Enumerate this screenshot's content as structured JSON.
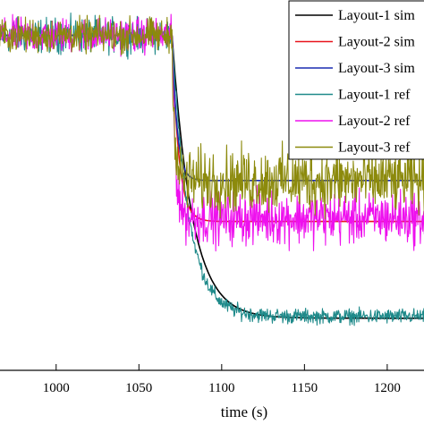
{
  "chart_data": {
    "type": "line",
    "title": "",
    "xlabel": "time (s)",
    "ylabel": "",
    "xlim": [
      965,
      1226
    ],
    "x_ticks": [
      {
        "value": 1000,
        "label": "1000"
      },
      {
        "value": 1050,
        "label": "1050"
      },
      {
        "value": 1100,
        "label": "1100"
      },
      {
        "value": 1150,
        "label": "1150"
      },
      {
        "value": 1200,
        "label": "1200"
      }
    ],
    "ylim": [
      0,
      100
    ],
    "step_time": 1070,
    "legend": {
      "placement": "top-right"
    },
    "series": [
      {
        "name": "Layout-1 sim",
        "kind": "simulation",
        "color": "#000000",
        "initial": 90,
        "final": 14,
        "tau": 12
      },
      {
        "name": "Layout-2 sim",
        "kind": "simulation",
        "color": "#e8141c",
        "initial": 90,
        "final": 40,
        "tau": 4
      },
      {
        "name": "Layout-3 sim",
        "kind": "simulation",
        "color": "#1a2bb0",
        "initial": 90,
        "final": 51,
        "tau": 3
      },
      {
        "name": "Layout-1 ref",
        "kind": "reference",
        "color": "#1f8a8a",
        "initial": 90,
        "final": 14.5,
        "tau": 10,
        "noise": 1.4
      },
      {
        "name": "Layout-2 ref",
        "kind": "reference",
        "color": "#ee10ee",
        "initial": 90,
        "final": 41,
        "tau": 2,
        "noise": 5
      },
      {
        "name": "Layout-3 ref",
        "kind": "reference",
        "color": "#8c8a0c",
        "initial": 90,
        "final": 51,
        "tau": 1.5,
        "noise": 6
      }
    ]
  }
}
